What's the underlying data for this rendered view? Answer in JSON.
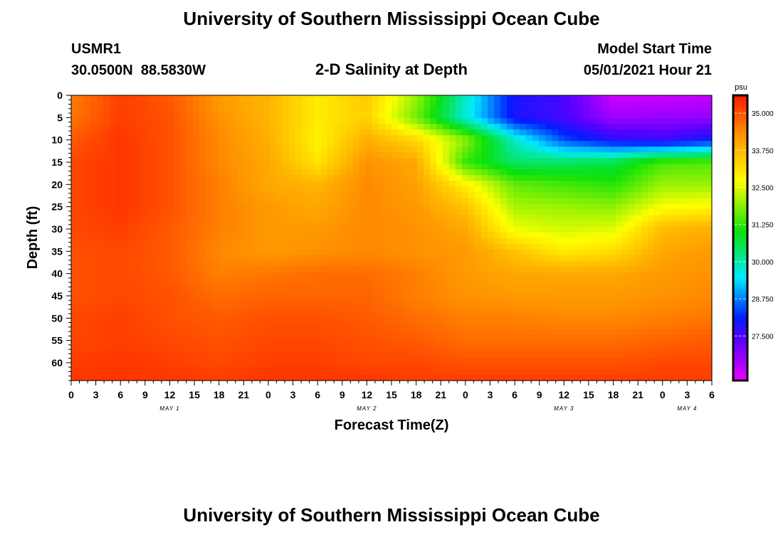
{
  "header": {
    "title": "University of Southern Mississippi Ocean Cube",
    "station_id": "USMR1",
    "coordinates": "30.0500N  88.5830W",
    "plot_title": "2-D Salinity at Depth",
    "model_start_label": "Model Start Time",
    "model_start_value": "05/01/2021 Hour 21"
  },
  "footer": {
    "title": "University of Southern Mississippi Ocean Cube"
  },
  "chart_data": {
    "type": "heatmap",
    "title": "2-D Salinity at Depth",
    "xlabel": "Forecast Time(Z)",
    "ylabel": "Depth (ft)",
    "x_unit": "hours since model start",
    "xlim": [
      0,
      78
    ],
    "ylim": [
      64,
      0
    ],
    "x_tick_labels": [
      "0",
      "3",
      "6",
      "9",
      "12",
      "15",
      "18",
      "21",
      "0",
      "3",
      "6",
      "9",
      "12",
      "15",
      "18",
      "21",
      "0",
      "3",
      "6",
      "9",
      "12",
      "15",
      "18",
      "21",
      "0",
      "3",
      "6"
    ],
    "y_ticks": [
      0,
      5,
      10,
      15,
      20,
      25,
      30,
      35,
      40,
      45,
      50,
      55,
      60
    ],
    "date_labels": [
      {
        "label": "MAY 1",
        "x": 12
      },
      {
        "label": "MAY 2",
        "x": 36
      },
      {
        "label": "MAY 3",
        "x": 60
      },
      {
        "label": "MAY 4",
        "x": 75
      }
    ],
    "colorbar": {
      "unit": "psu",
      "min": 26.0,
      "max": 35.6,
      "tick_labels": [
        "35.000",
        "33.750",
        "32.500",
        "31.250",
        "30.000",
        "28.750",
        "27.500"
      ],
      "tick_values": [
        35.0,
        33.75,
        32.5,
        31.25,
        30.0,
        28.75,
        27.5
      ]
    },
    "grid_x": [
      0,
      6,
      12,
      18,
      24,
      30,
      36,
      42,
      48,
      54,
      60,
      66,
      72,
      78
    ],
    "grid_y": [
      0,
      5,
      10,
      15,
      20,
      25,
      30,
      35,
      40,
      45,
      50,
      55,
      60,
      64
    ],
    "grid_values": [
      [
        34.5,
        35.2,
        34.9,
        34.2,
        33.8,
        33.0,
        33.5,
        32.0,
        29.8,
        27.9,
        27.5,
        26.3,
        26.3,
        26.4
      ],
      [
        34.6,
        35.2,
        35.0,
        34.3,
        33.8,
        33.0,
        33.4,
        31.7,
        29.7,
        27.9,
        27.5,
        26.7,
        26.8,
        26.8
      ],
      [
        34.9,
        35.3,
        35.0,
        34.4,
        33.9,
        32.9,
        33.9,
        33.3,
        31.9,
        29.8,
        28.4,
        27.8,
        27.6,
        28.0
      ],
      [
        35.1,
        35.3,
        35.0,
        34.4,
        34.0,
        33.1,
        34.3,
        34.0,
        31.3,
        30.4,
        30.4,
        30.6,
        31.4,
        31.5
      ],
      [
        35.1,
        35.3,
        35.0,
        34.5,
        34.0,
        33.8,
        34.4,
        34.1,
        32.9,
        31.6,
        31.4,
        31.2,
        32.0,
        32.0
      ],
      [
        35.1,
        35.3,
        35.0,
        34.5,
        34.2,
        34.0,
        34.4,
        34.2,
        33.6,
        32.1,
        32.0,
        31.9,
        32.7,
        32.8
      ],
      [
        35.1,
        35.2,
        34.9,
        34.5,
        34.2,
        34.2,
        34.4,
        34.3,
        34.0,
        32.6,
        32.4,
        32.5,
        33.7,
        33.9
      ],
      [
        35.0,
        35.1,
        34.9,
        34.4,
        34.2,
        34.3,
        34.4,
        34.3,
        34.2,
        33.6,
        33.0,
        33.2,
        34.0,
        34.2
      ],
      [
        35.0,
        35.1,
        34.9,
        34.5,
        34.6,
        34.7,
        34.7,
        34.5,
        34.2,
        34.0,
        34.0,
        34.0,
        34.2,
        34.3
      ],
      [
        35.0,
        35.1,
        35.0,
        34.7,
        34.8,
        34.8,
        34.8,
        34.5,
        34.3,
        34.2,
        34.2,
        34.2,
        34.3,
        34.4
      ],
      [
        35.1,
        35.2,
        35.0,
        34.9,
        35.0,
        35.0,
        34.9,
        34.7,
        34.5,
        34.5,
        34.4,
        34.4,
        34.5,
        34.6
      ],
      [
        35.1,
        35.2,
        35.1,
        35.0,
        35.1,
        35.1,
        35.0,
        34.9,
        34.7,
        34.7,
        34.7,
        34.7,
        34.8,
        34.9
      ],
      [
        35.2,
        35.3,
        35.2,
        35.1,
        35.2,
        35.2,
        35.1,
        35.1,
        35.0,
        35.0,
        35.0,
        35.0,
        35.1,
        35.1
      ],
      [
        35.3,
        35.3,
        35.3,
        35.2,
        35.3,
        35.3,
        35.3,
        35.2,
        35.2,
        35.2,
        35.2,
        35.2,
        35.2,
        35.2
      ]
    ]
  }
}
